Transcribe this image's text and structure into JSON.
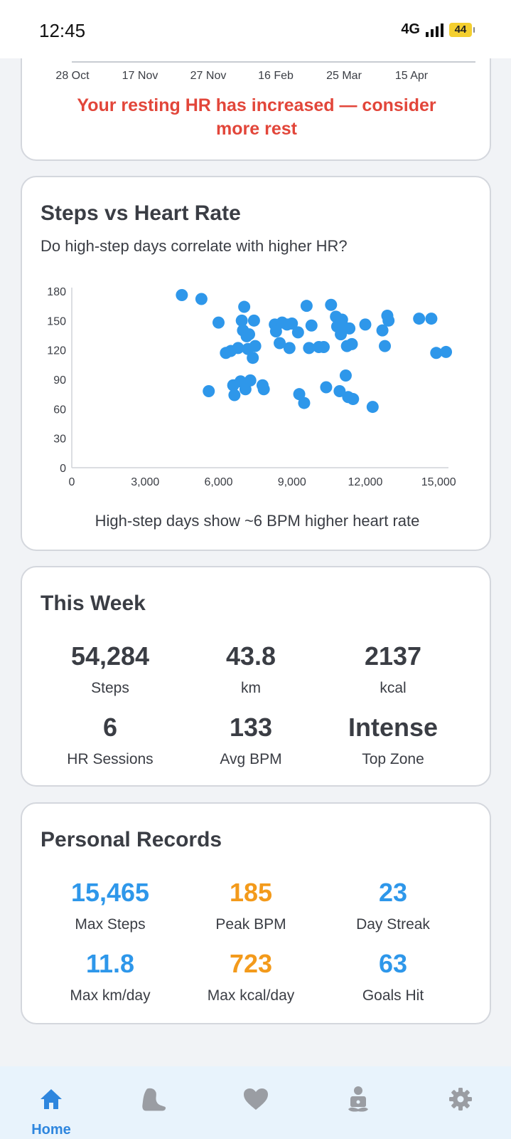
{
  "status_bar": {
    "time": "12:45",
    "network": "4G",
    "battery": "44"
  },
  "resting_hr_card": {
    "x_ticks": [
      "28 Oct",
      "17 Nov",
      "27 Nov",
      "16 Feb",
      "25 Mar",
      "15 Apr"
    ],
    "warning_line1": "Your resting HR has increased — consider",
    "warning_line2": "more rest"
  },
  "scatter_card": {
    "title": "Steps vs Heart Rate",
    "subtitle": "Do high-step days correlate with higher HR?",
    "caption": "High-step days show ~6 BPM higher heart rate"
  },
  "chart_data": {
    "type": "scatter",
    "xlim": [
      0,
      15400
    ],
    "ylim": [
      0,
      180
    ],
    "x_ticks": [
      0,
      3000,
      6000,
      9000,
      12000,
      15000
    ],
    "x_tick_labels": [
      "0",
      "3,000",
      "6,000",
      "9,000",
      "12,000",
      "15,000"
    ],
    "y_ticks": [
      0,
      30,
      60,
      90,
      120,
      150,
      180
    ],
    "y_tick_labels": [
      "0",
      "30",
      "60",
      "90",
      "120",
      "150",
      "180"
    ],
    "grid": false,
    "color": "#2e97ea",
    "points": [
      [
        4500,
        176
      ],
      [
        5300,
        172
      ],
      [
        5600,
        78
      ],
      [
        6000,
        148
      ],
      [
        6300,
        117
      ],
      [
        6500,
        119
      ],
      [
        6600,
        84
      ],
      [
        6650,
        74
      ],
      [
        6800,
        122
      ],
      [
        6900,
        88
      ],
      [
        6950,
        150
      ],
      [
        7000,
        140
      ],
      [
        7050,
        164
      ],
      [
        7100,
        80
      ],
      [
        7150,
        134
      ],
      [
        7200,
        121
      ],
      [
        7250,
        136
      ],
      [
        7300,
        89
      ],
      [
        7400,
        112
      ],
      [
        7450,
        150
      ],
      [
        7500,
        124
      ],
      [
        7800,
        84
      ],
      [
        7850,
        80
      ],
      [
        8300,
        146
      ],
      [
        8350,
        139
      ],
      [
        8500,
        127
      ],
      [
        8600,
        148
      ],
      [
        8800,
        146
      ],
      [
        8900,
        122
      ],
      [
        9000,
        147
      ],
      [
        9250,
        138
      ],
      [
        9300,
        75
      ],
      [
        9500,
        66
      ],
      [
        9600,
        165
      ],
      [
        9700,
        122
      ],
      [
        9800,
        145
      ],
      [
        10100,
        123
      ],
      [
        10300,
        123
      ],
      [
        10400,
        82
      ],
      [
        10600,
        166
      ],
      [
        10800,
        154
      ],
      [
        10850,
        144
      ],
      [
        10950,
        78
      ],
      [
        11000,
        136
      ],
      [
        11050,
        151
      ],
      [
        11100,
        144
      ],
      [
        11200,
        94
      ],
      [
        11250,
        124
      ],
      [
        11300,
        72
      ],
      [
        11350,
        142
      ],
      [
        11450,
        126
      ],
      [
        11500,
        70
      ],
      [
        12000,
        146
      ],
      [
        12300,
        62
      ],
      [
        12700,
        140
      ],
      [
        12800,
        124
      ],
      [
        12900,
        155
      ],
      [
        12950,
        150
      ],
      [
        14200,
        152
      ],
      [
        14700,
        152
      ],
      [
        14900,
        117
      ],
      [
        15300,
        118
      ]
    ]
  },
  "week_card": {
    "title": "This Week",
    "stats": [
      {
        "value": "54,284",
        "label": "Steps"
      },
      {
        "value": "43.8",
        "label": "km"
      },
      {
        "value": "2137",
        "label": "kcal"
      },
      {
        "value": "6",
        "label": "HR Sessions"
      },
      {
        "value": "133",
        "label": "Avg BPM"
      },
      {
        "value": "Intense",
        "label": "Top Zone"
      }
    ]
  },
  "records_card": {
    "title": "Personal Records",
    "stats": [
      {
        "value": "15,465",
        "label": "Max Steps"
      },
      {
        "value": "185",
        "label": "Peak BPM"
      },
      {
        "value": "23",
        "label": "Day Streak"
      },
      {
        "value": "11.8",
        "label": "Max km/day"
      },
      {
        "value": "723",
        "label": "Max kcal/day"
      },
      {
        "value": "63",
        "label": "Goals Hit"
      }
    ]
  },
  "nav": {
    "home_label": "Home",
    "items": [
      "home-icon",
      "shoe-icon",
      "heart-icon",
      "meditation-icon",
      "gear-icon"
    ],
    "active_color": "#2e86de",
    "inactive_color": "#9a9da3"
  }
}
